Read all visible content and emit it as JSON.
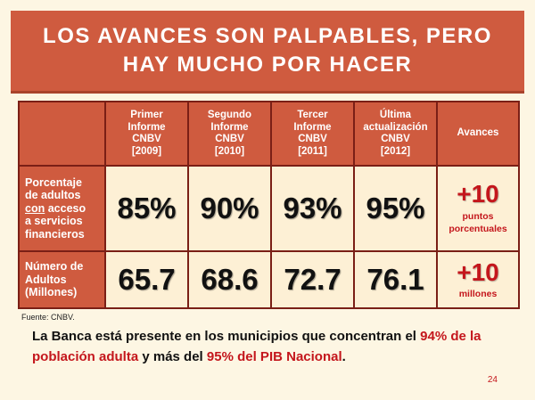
{
  "title": {
    "line1": "LOS AVANCES SON PALPABLES, PERO",
    "line2": "HAY MUCHO POR HACER"
  },
  "table": {
    "headers": [
      {
        "line1": "Primer",
        "line2": "Informe",
        "line3": "CNBV",
        "line4": "[2009]"
      },
      {
        "line1": "Segundo",
        "line2": "Informe",
        "line3": "CNBV",
        "line4": "[2010]"
      },
      {
        "line1": "Tercer",
        "line2": "Informe",
        "line3": "CNBV",
        "line4": "[2011]"
      },
      {
        "line1": "Última",
        "line2": "actualización",
        "line3": "CNBV",
        "line4": "[2012]"
      }
    ],
    "avances_header": "Avances",
    "rows": [
      {
        "label": {
          "line1": "Porcentaje",
          "line2": "de adultos",
          "line3_u": "con",
          "line3_rest": " acceso",
          "line4": "a servicios",
          "line5": "financieros"
        },
        "values": [
          "85%",
          "90%",
          "93%",
          "95%"
        ],
        "advance_big": "+10",
        "advance_small1": "puntos",
        "advance_small2": "porcentuales"
      },
      {
        "label": {
          "line1": "Número de",
          "line2": "Adultos",
          "line3": "(Millones)"
        },
        "values": [
          "65.7",
          "68.6",
          "72.7",
          "76.1"
        ],
        "advance_big": "+10",
        "advance_small1": "millones"
      }
    ]
  },
  "source": "Fuente: CNBV.",
  "summary": {
    "part1": "La Banca está presente en los municipios que concentran el ",
    "hl1": "94%",
    "hl2": "de la población adulta",
    "part2": " y más del ",
    "hl3": "95% del PIB Nacional",
    "part3": "."
  },
  "page_number": "24",
  "colors": {
    "accent": "#cf5b3f",
    "border": "#7a1f16",
    "highlight": "#c4161c",
    "background": "#fdf6e3",
    "cell": "#fdf0d5"
  }
}
